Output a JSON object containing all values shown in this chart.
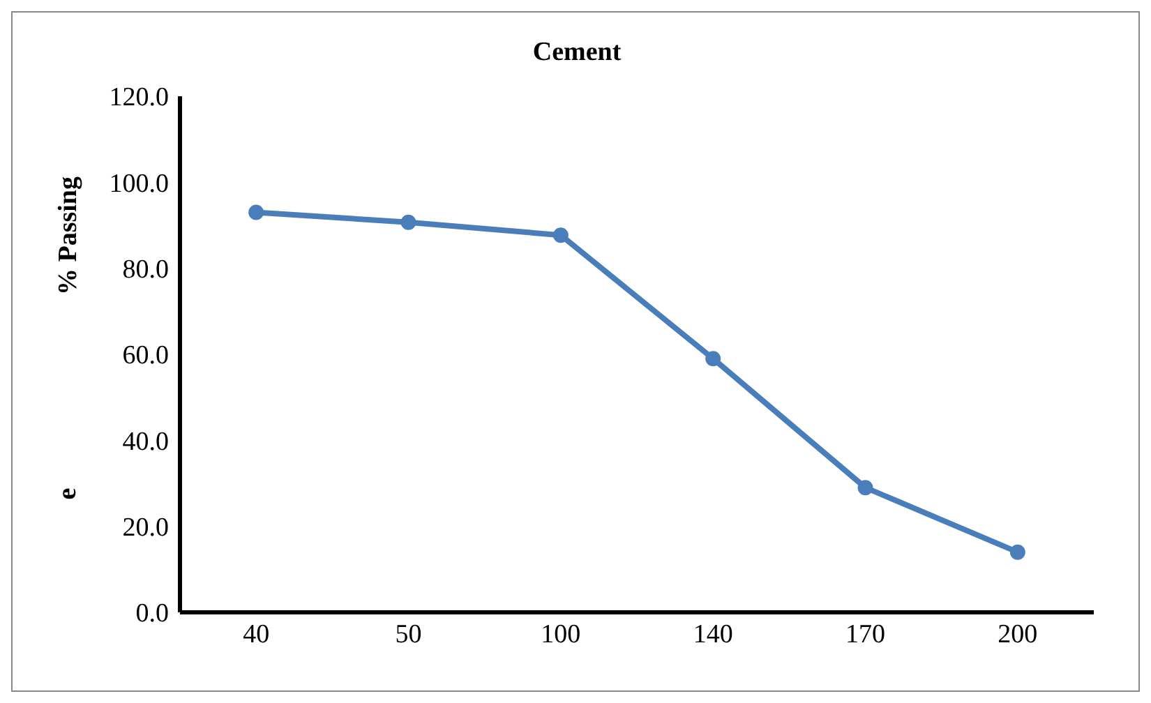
{
  "chart_data": {
    "type": "line",
    "title": "Cement",
    "ylabel": "% Passing",
    "annotations": [
      "e"
    ],
    "categories": [
      "40",
      "50",
      "100",
      "140",
      "170",
      "200"
    ],
    "series": [
      {
        "color": "#4a7ebb",
        "values": [
          93,
          90.7,
          87.7,
          59,
          29,
          14
        ]
      }
    ],
    "ylim": [
      0,
      120
    ],
    "yticks": [
      {
        "value": 0,
        "label": "0.0"
      },
      {
        "value": 20,
        "label": "20.0"
      },
      {
        "value": 40,
        "label": "40.0"
      },
      {
        "value": 60,
        "label": "60.0"
      },
      {
        "value": 80,
        "label": "80.0"
      },
      {
        "value": 100,
        "label": "100.0"
      },
      {
        "value": 120,
        "label": "120.0"
      }
    ],
    "grid": false,
    "legend": false,
    "marker": "circle",
    "line_style": "solid"
  }
}
